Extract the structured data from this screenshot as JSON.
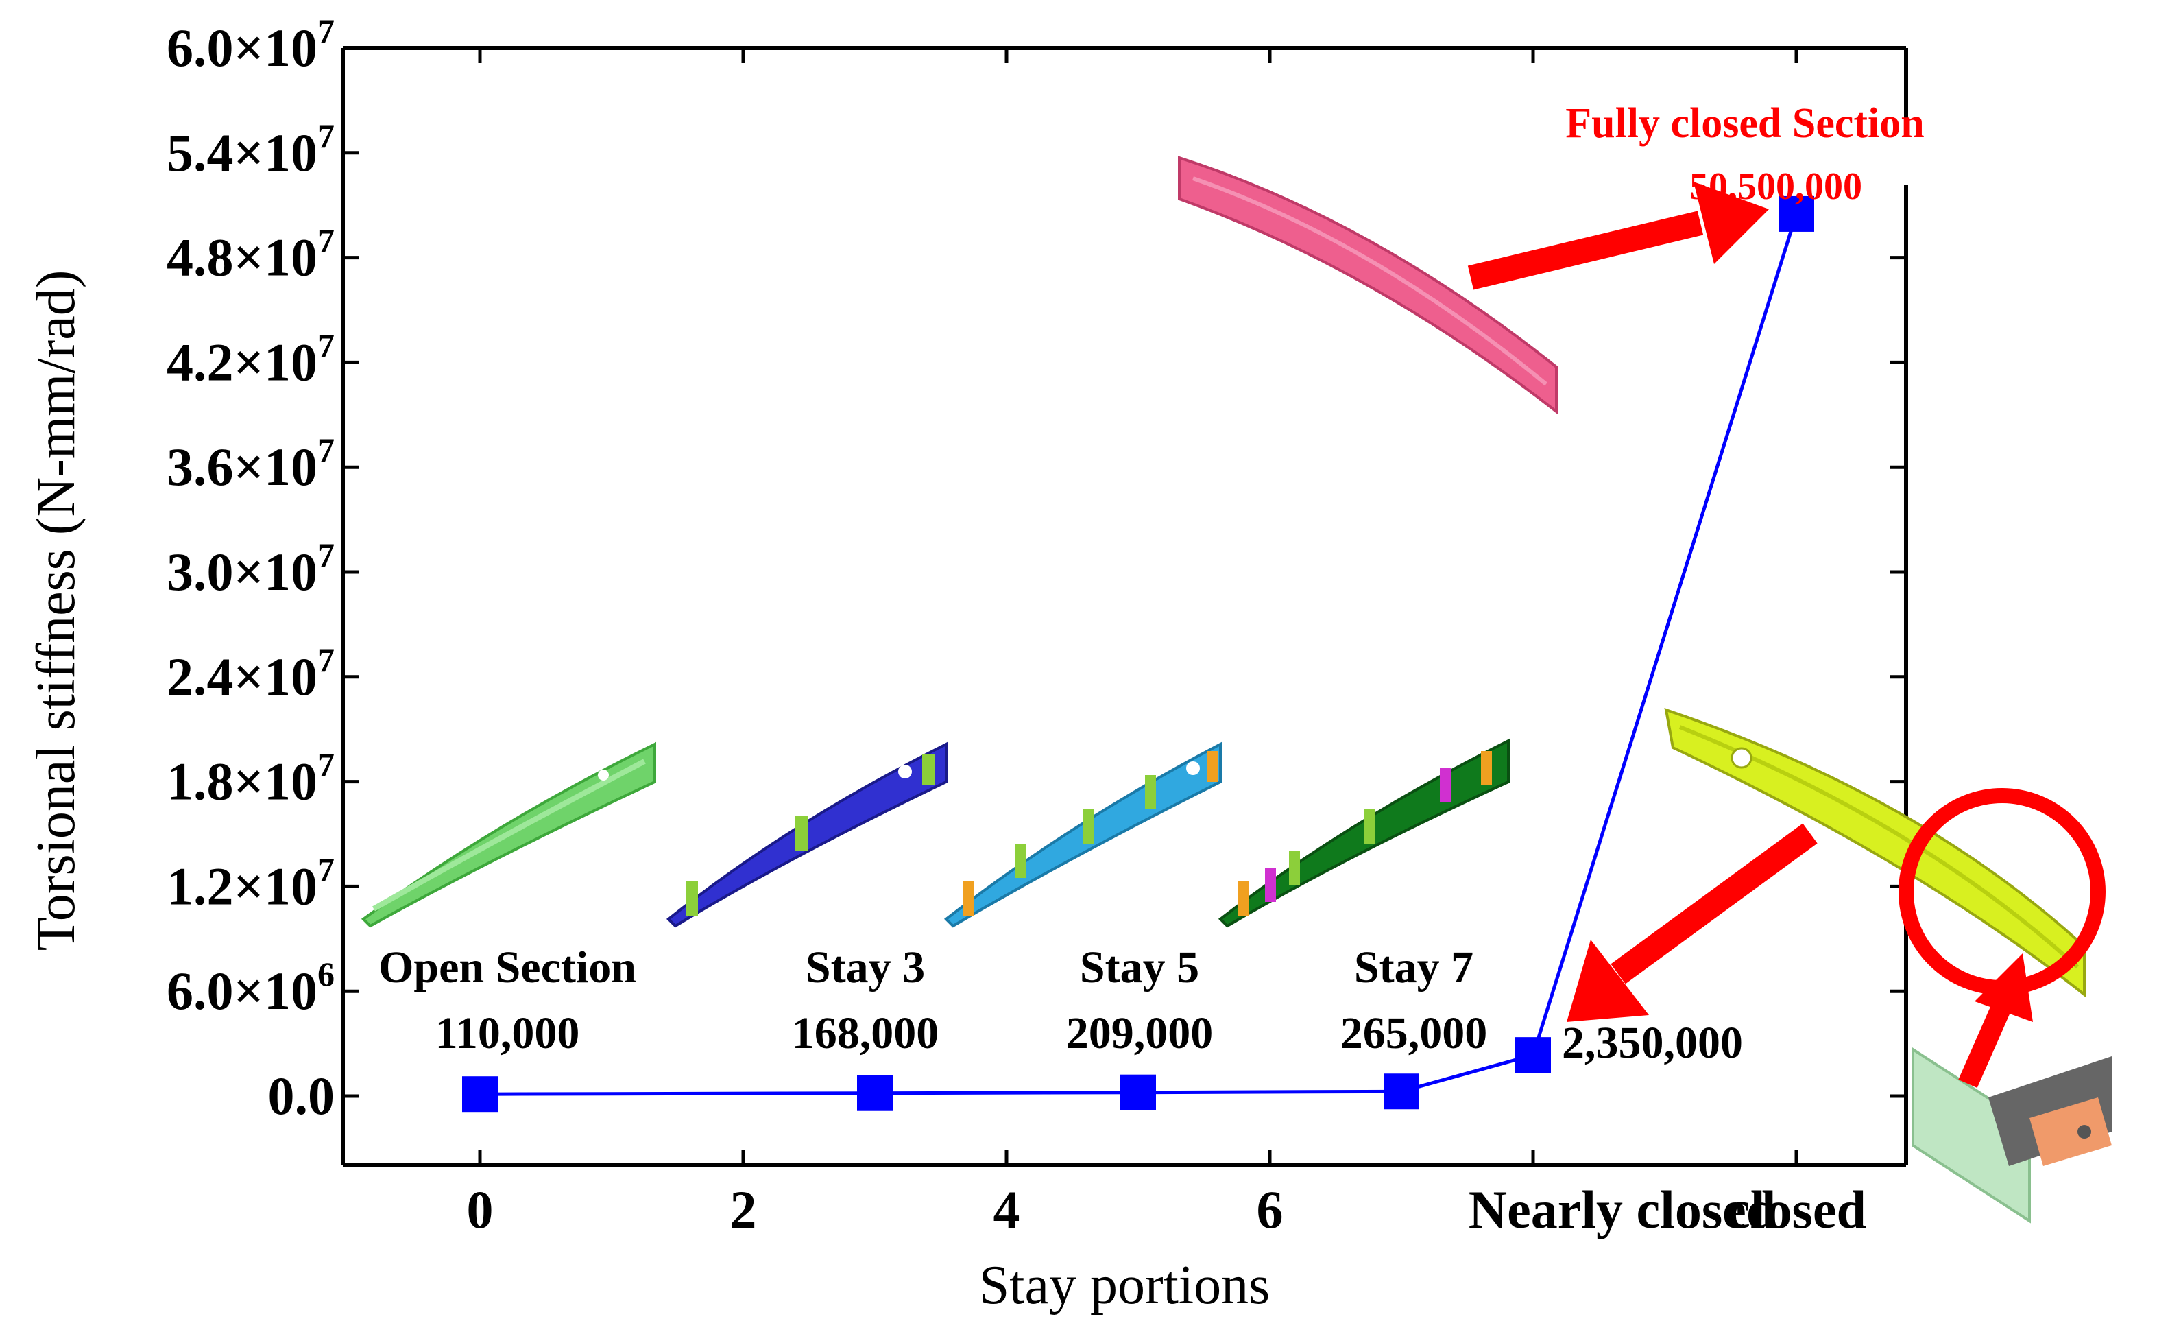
{
  "chart_data": {
    "type": "line",
    "xlabel": "Stay portions",
    "ylabel": "Torsional  stiffness (N-mm/rad)",
    "ylim": [
      -5000000,
      60000000
    ],
    "xlim": [
      -1,
      10.7
    ],
    "x_ticks": [
      {
        "value": 0,
        "label": "0"
      },
      {
        "value": 2,
        "label": "2"
      },
      {
        "value": 4,
        "label": "4"
      },
      {
        "value": 6,
        "label": "6"
      },
      {
        "value": 8,
        "label": "Nearly closed"
      },
      {
        "value": 10,
        "label": "closed"
      }
    ],
    "y_ticks": [
      {
        "value": 0,
        "mant": "0.0",
        "exp": ""
      },
      {
        "value": 6000000,
        "mant": "6.0×10",
        "exp": "6"
      },
      {
        "value": 12000000,
        "mant": "1.2×10",
        "exp": "7"
      },
      {
        "value": 18000000,
        "mant": "1.8×10",
        "exp": "7"
      },
      {
        "value": 24000000,
        "mant": "2.4×10",
        "exp": "7"
      },
      {
        "value": 30000000,
        "mant": "3.0×10",
        "exp": "7"
      },
      {
        "value": 36000000,
        "mant": "3.6×10",
        "exp": "7"
      },
      {
        "value": 42000000,
        "mant": "4.2×10",
        "exp": "7"
      },
      {
        "value": 48000000,
        "mant": "4.8×10",
        "exp": "7"
      },
      {
        "value": 54000000,
        "mant": "5.4×10",
        "exp": "7"
      },
      {
        "value": 60000000,
        "mant": "6.0×10",
        "exp": "7"
      }
    ],
    "series": [
      {
        "name": "Torsional stiffness",
        "color": "#0000ff",
        "x": [
          0,
          3,
          5,
          7,
          8,
          10
        ],
        "values": [
          110000,
          168000,
          209000,
          265000,
          2350000,
          50500000
        ]
      }
    ],
    "annotations": [
      {
        "title": "Open Section",
        "value_text": "110,000"
      },
      {
        "title": "Stay 3",
        "value_text": "168,000"
      },
      {
        "title": "Stay 5",
        "value_text": "209,000"
      },
      {
        "title": "Stay 7",
        "value_text": "265,000"
      },
      {
        "title": "",
        "value_text": "2,350,000"
      },
      {
        "title": "Fully closed Section",
        "value_text": "50,500,000"
      }
    ]
  },
  "colors": {
    "series": "#0000ff",
    "highlight": "#ff0000",
    "open_section_part": "#6fd36a",
    "stay3_part": "#3030d0",
    "stay5_part": "#30a8e0",
    "stay7_part": "#0f7a1c",
    "closed_part": "#d8f020",
    "fully_closed_part": "#ee5f8e"
  }
}
